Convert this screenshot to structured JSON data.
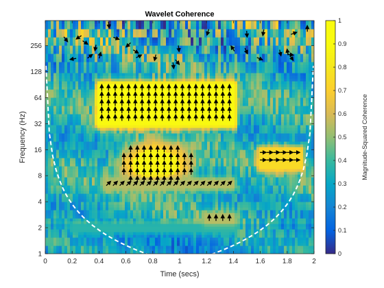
{
  "chart_data": {
    "type": "heatmap",
    "title": "Wavelet Coherence",
    "xlabel": "Time (secs)",
    "ylabel": "Frequency (Hz)",
    "colorbar_label": "Magnitude-Squared Coherence",
    "xlim": [
      0,
      2
    ],
    "ylim": [
      1,
      500
    ],
    "y_scale": "log2",
    "x_ticks": [
      0,
      0.2,
      0.4,
      0.6,
      0.8,
      1,
      1.2,
      1.4,
      1.6,
      1.8,
      2
    ],
    "x_tick_labels": [
      "0",
      "0.2",
      "0.4",
      "0.6",
      "0.8",
      "1",
      "1.2",
      "1.4",
      "1.6",
      "1.8",
      "2"
    ],
    "y_ticks": [
      1,
      2,
      4,
      8,
      16,
      32,
      64,
      128,
      256
    ],
    "y_tick_labels": [
      "1",
      "2",
      "4",
      "8",
      "16",
      "32",
      "64",
      "128",
      "256"
    ],
    "colorbar_range": [
      0,
      1
    ],
    "colorbar_ticks": [
      0,
      0.1,
      0.2,
      0.3,
      0.4,
      0.5,
      0.6,
      0.7,
      0.8,
      0.9,
      1
    ],
    "colorbar_tick_labels": [
      "0",
      "0.1",
      "0.2",
      "0.3",
      "0.4",
      "0.5",
      "0.6",
      "0.7",
      "0.8",
      "0.9",
      "1"
    ],
    "colormap": "parula",
    "background_coherence": 0.35,
    "regions": [
      {
        "t_range": [
          0.4,
          1.4
        ],
        "f_range": [
          32,
          90
        ],
        "coherence": 0.98,
        "phase_arrows": "up"
      },
      {
        "t_center": 0.82,
        "f_center": 11,
        "t_halfwidth": 0.3,
        "f_octave_halfwidth": 0.95,
        "coherence": 0.95,
        "phase_arrows": "up"
      },
      {
        "t_range": [
          0.45,
          1.4
        ],
        "f_range": [
          6,
          7
        ],
        "coherence": 0.55,
        "phase_arrows": "up-right"
      },
      {
        "t_range": [
          0.2,
          1.4
        ],
        "f_range": [
          1.9,
          2.1
        ],
        "coherence": 0.45,
        "phase_arrows": "up-right"
      },
      {
        "t_range": [
          1.2,
          1.4
        ],
        "f_range": [
          2.3,
          2.8
        ],
        "coherence": 0.55,
        "phase_arrows": "up"
      },
      {
        "t_range": [
          1.6,
          1.9
        ],
        "f_range": [
          10,
          16
        ],
        "coherence": 0.75,
        "phase_arrows": "right"
      }
    ],
    "cone_of_influence": {
      "style": "dashed",
      "color": "#ffffff"
    },
    "colors": {
      "high": "#f9fb0e",
      "low": "#352a87",
      "mid": "#21b1a8",
      "arrow": "#000000",
      "cone": "#ffffff"
    }
  }
}
